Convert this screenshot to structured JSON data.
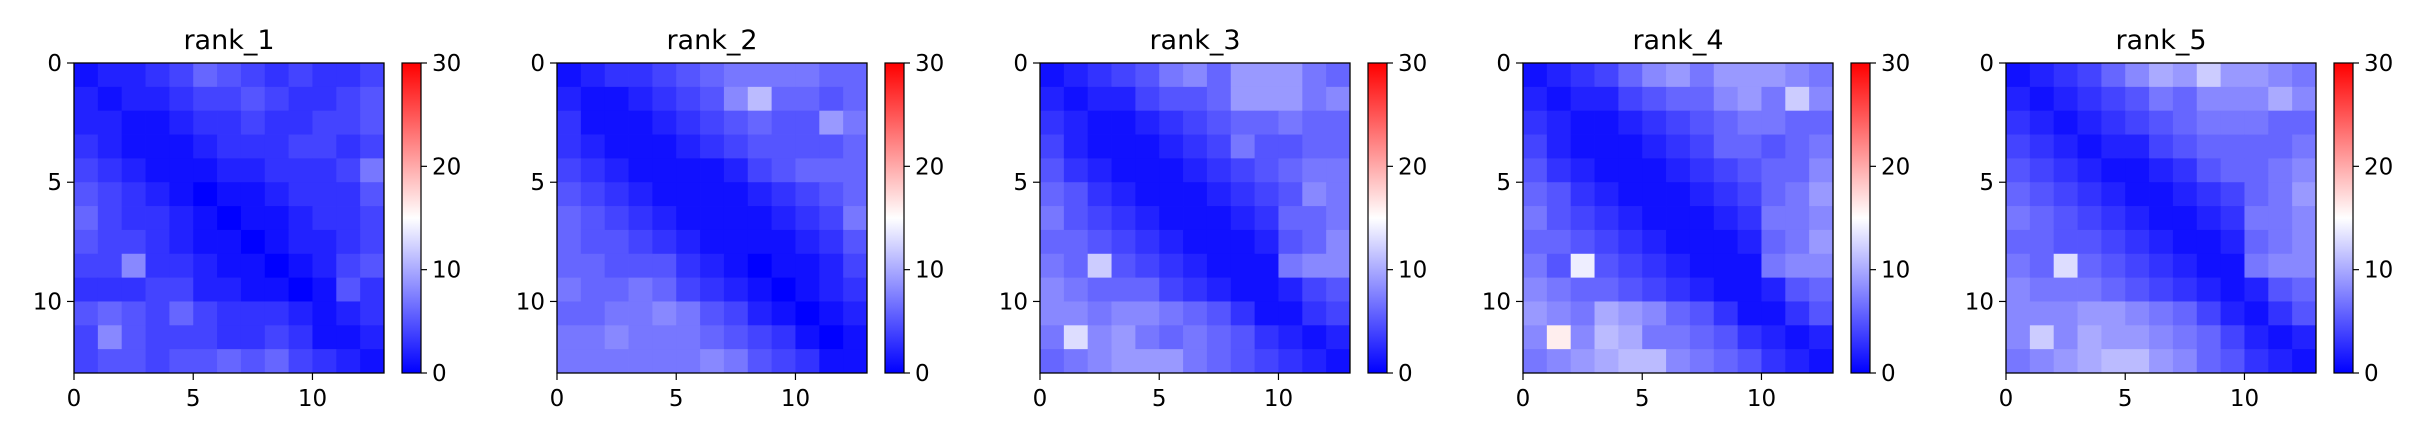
{
  "chart_data": [
    {
      "type": "heatmap",
      "title": "rank_1",
      "rows": 13,
      "cols": 13,
      "colorbar": {
        "min": 0,
        "max": 30,
        "ticks": [
          0,
          10,
          20,
          30
        ],
        "colormap": "bwr"
      },
      "x_ticks": [
        0,
        5,
        10
      ],
      "y_ticks": [
        0,
        5,
        10
      ],
      "values": [
        [
          1,
          2,
          2,
          3,
          4,
          6,
          5,
          4,
          3,
          4,
          3,
          3,
          4
        ],
        [
          2,
          1,
          2,
          2,
          3,
          4,
          4,
          5,
          4,
          3,
          3,
          4,
          5
        ],
        [
          2,
          2,
          1,
          1,
          2,
          3,
          3,
          4,
          3,
          3,
          4,
          4,
          5
        ],
        [
          3,
          2,
          1,
          1,
          1,
          2,
          3,
          3,
          3,
          4,
          4,
          3,
          4
        ],
        [
          4,
          3,
          2,
          1,
          1,
          1,
          2,
          2,
          3,
          3,
          3,
          4,
          7
        ],
        [
          5,
          4,
          3,
          2,
          1,
          0,
          1,
          1,
          2,
          3,
          3,
          3,
          5
        ],
        [
          6,
          4,
          3,
          3,
          2,
          1,
          0,
          1,
          1,
          2,
          3,
          3,
          4
        ],
        [
          5,
          4,
          4,
          3,
          2,
          1,
          1,
          0,
          1,
          2,
          2,
          3,
          4
        ],
        [
          4,
          4,
          8,
          3,
          3,
          2,
          1,
          1,
          0,
          1,
          2,
          4,
          5
        ],
        [
          3,
          3,
          3,
          4,
          4,
          2,
          2,
          1,
          1,
          0,
          1,
          5,
          3
        ],
        [
          5,
          6,
          5,
          4,
          6,
          4,
          3,
          3,
          3,
          2,
          1,
          2,
          3
        ],
        [
          4,
          8,
          5,
          4,
          4,
          4,
          3,
          3,
          4,
          3,
          1,
          1,
          2
        ],
        [
          4,
          5,
          5,
          4,
          5,
          5,
          6,
          5,
          6,
          4,
          3,
          2,
          1
        ]
      ]
    },
    {
      "type": "heatmap",
      "title": "rank_2",
      "rows": 13,
      "cols": 13,
      "colorbar": {
        "min": 0,
        "max": 30,
        "ticks": [
          0,
          10,
          20,
          30
        ],
        "colormap": "bwr"
      },
      "x_ticks": [
        0,
        5,
        10
      ],
      "y_ticks": [
        0,
        5,
        10
      ],
      "values": [
        [
          1,
          2,
          3,
          3,
          4,
          5,
          6,
          7,
          7,
          7,
          7,
          6,
          6
        ],
        [
          2,
          1,
          1,
          2,
          3,
          4,
          5,
          8,
          11,
          6,
          6,
          5,
          6
        ],
        [
          3,
          1,
          1,
          1,
          2,
          3,
          4,
          5,
          6,
          5,
          5,
          9,
          7
        ],
        [
          3,
          2,
          1,
          1,
          1,
          2,
          3,
          4,
          5,
          5,
          5,
          5,
          6
        ],
        [
          4,
          3,
          2,
          1,
          1,
          1,
          1,
          2,
          4,
          5,
          6,
          6,
          6
        ],
        [
          5,
          4,
          3,
          2,
          1,
          1,
          1,
          1,
          2,
          3,
          4,
          5,
          6
        ],
        [
          6,
          5,
          4,
          3,
          2,
          1,
          1,
          1,
          1,
          2,
          3,
          4,
          7
        ],
        [
          6,
          5,
          5,
          4,
          3,
          2,
          1,
          1,
          1,
          1,
          2,
          3,
          5
        ],
        [
          6,
          6,
          5,
          5,
          5,
          3,
          2,
          1,
          0,
          1,
          1,
          2,
          4
        ],
        [
          7,
          6,
          6,
          7,
          6,
          4,
          3,
          2,
          1,
          0,
          1,
          2,
          3
        ],
        [
          6,
          6,
          7,
          7,
          8,
          7,
          5,
          4,
          2,
          1,
          0,
          1,
          2
        ],
        [
          7,
          7,
          8,
          7,
          7,
          7,
          6,
          5,
          4,
          3,
          1,
          0,
          1
        ],
        [
          7,
          7,
          7,
          7,
          7,
          7,
          8,
          7,
          5,
          4,
          3,
          1,
          1
        ]
      ]
    },
    {
      "type": "heatmap",
      "title": "rank_3",
      "rows": 13,
      "cols": 13,
      "colorbar": {
        "min": 0,
        "max": 30,
        "ticks": [
          0,
          10,
          20,
          30
        ],
        "colormap": "bwr"
      },
      "x_ticks": [
        0,
        5,
        10
      ],
      "y_ticks": [
        0,
        5,
        10
      ],
      "values": [
        [
          1,
          2,
          3,
          4,
          5,
          7,
          8,
          6,
          9,
          9,
          9,
          7,
          6
        ],
        [
          2,
          1,
          2,
          2,
          4,
          5,
          5,
          6,
          9,
          9,
          9,
          7,
          8
        ],
        [
          3,
          2,
          1,
          1,
          2,
          3,
          4,
          5,
          6,
          6,
          7,
          6,
          6
        ],
        [
          4,
          2,
          1,
          1,
          1,
          2,
          3,
          4,
          7,
          5,
          5,
          6,
          6
        ],
        [
          5,
          3,
          2,
          1,
          1,
          1,
          2,
          3,
          4,
          5,
          6,
          7,
          7
        ],
        [
          6,
          5,
          3,
          2,
          1,
          1,
          1,
          2,
          3,
          4,
          5,
          8,
          7
        ],
        [
          7,
          5,
          4,
          3,
          2,
          1,
          1,
          1,
          2,
          3,
          6,
          6,
          7
        ],
        [
          6,
          6,
          5,
          4,
          3,
          2,
          1,
          1,
          1,
          2,
          5,
          6,
          8
        ],
        [
          7,
          6,
          12,
          5,
          4,
          3,
          2,
          1,
          1,
          1,
          7,
          8,
          8
        ],
        [
          8,
          7,
          6,
          6,
          6,
          4,
          3,
          2,
          1,
          1,
          2,
          4,
          5
        ],
        [
          8,
          8,
          7,
          8,
          8,
          7,
          6,
          5,
          3,
          1,
          1,
          3,
          4
        ],
        [
          7,
          13,
          8,
          9,
          7,
          6,
          7,
          6,
          5,
          3,
          2,
          1,
          2
        ],
        [
          6,
          7,
          8,
          9,
          9,
          9,
          7,
          6,
          5,
          4,
          3,
          2,
          1
        ]
      ]
    },
    {
      "type": "heatmap",
      "title": "rank_4",
      "rows": 13,
      "cols": 13,
      "colorbar": {
        "min": 0,
        "max": 30,
        "ticks": [
          0,
          10,
          20,
          30
        ],
        "colormap": "bwr"
      },
      "x_ticks": [
        0,
        5,
        10
      ],
      "y_ticks": [
        0,
        5,
        10
      ],
      "values": [
        [
          1,
          2,
          3,
          4,
          6,
          8,
          9,
          7,
          9,
          9,
          9,
          8,
          7
        ],
        [
          2,
          1,
          2,
          2,
          4,
          5,
          6,
          6,
          8,
          9,
          7,
          12,
          8
        ],
        [
          3,
          2,
          1,
          1,
          2,
          3,
          4,
          5,
          6,
          7,
          7,
          6,
          6
        ],
        [
          4,
          2,
          1,
          1,
          1,
          2,
          3,
          4,
          6,
          6,
          5,
          6,
          7
        ],
        [
          5,
          3,
          2,
          1,
          1,
          1,
          2,
          3,
          4,
          5,
          6,
          6,
          8
        ],
        [
          6,
          5,
          3,
          2,
          1,
          1,
          1,
          2,
          3,
          4,
          6,
          7,
          9
        ],
        [
          7,
          5,
          4,
          3,
          2,
          1,
          1,
          1,
          2,
          3,
          7,
          7,
          8
        ],
        [
          6,
          6,
          5,
          4,
          3,
          2,
          1,
          1,
          1,
          2,
          6,
          7,
          9
        ],
        [
          7,
          5,
          14,
          5,
          4,
          3,
          2,
          1,
          1,
          1,
          7,
          8,
          8
        ],
        [
          8,
          7,
          6,
          6,
          5,
          4,
          3,
          2,
          1,
          1,
          2,
          5,
          6
        ],
        [
          9,
          8,
          7,
          10,
          9,
          8,
          6,
          5,
          3,
          1,
          1,
          3,
          5
        ],
        [
          8,
          16,
          8,
          11,
          10,
          7,
          7,
          6,
          5,
          3,
          2,
          1,
          2
        ],
        [
          7,
          8,
          9,
          10,
          11,
          11,
          8,
          7,
          6,
          5,
          3,
          2,
          1
        ]
      ]
    },
    {
      "type": "heatmap",
      "title": "rank_5",
      "rows": 13,
      "cols": 13,
      "colorbar": {
        "min": 0,
        "max": 30,
        "ticks": [
          0,
          10,
          20,
          30
        ],
        "colormap": "bwr"
      },
      "x_ticks": [
        0,
        5,
        10
      ],
      "y_ticks": [
        0,
        5,
        10
      ],
      "values": [
        [
          1,
          2,
          3,
          4,
          6,
          8,
          10,
          9,
          12,
          9,
          9,
          8,
          7
        ],
        [
          2,
          1,
          2,
          3,
          4,
          5,
          7,
          6,
          8,
          8,
          8,
          10,
          8
        ],
        [
          3,
          2,
          1,
          2,
          3,
          4,
          5,
          6,
          7,
          7,
          7,
          6,
          6
        ],
        [
          4,
          3,
          2,
          1,
          2,
          2,
          4,
          5,
          6,
          6,
          6,
          6,
          7
        ],
        [
          5,
          4,
          3,
          2,
          1,
          1,
          2,
          3,
          5,
          6,
          6,
          7,
          8
        ],
        [
          6,
          5,
          4,
          3,
          2,
          1,
          1,
          2,
          3,
          4,
          6,
          7,
          9
        ],
        [
          7,
          6,
          5,
          4,
          3,
          2,
          1,
          1,
          2,
          3,
          7,
          7,
          8
        ],
        [
          6,
          6,
          5,
          5,
          4,
          3,
          2,
          1,
          1,
          2,
          6,
          7,
          8
        ],
        [
          7,
          6,
          13,
          6,
          5,
          4,
          3,
          2,
          1,
          1,
          7,
          8,
          8
        ],
        [
          8,
          7,
          7,
          7,
          6,
          5,
          4,
          3,
          2,
          1,
          2,
          5,
          6
        ],
        [
          8,
          8,
          8,
          9,
          9,
          8,
          7,
          6,
          4,
          2,
          1,
          3,
          5
        ],
        [
          8,
          12,
          8,
          10,
          9,
          9,
          8,
          7,
          6,
          4,
          2,
          1,
          2
        ],
        [
          7,
          8,
          9,
          10,
          11,
          11,
          9,
          8,
          6,
          5,
          3,
          2,
          1
        ]
      ]
    }
  ]
}
